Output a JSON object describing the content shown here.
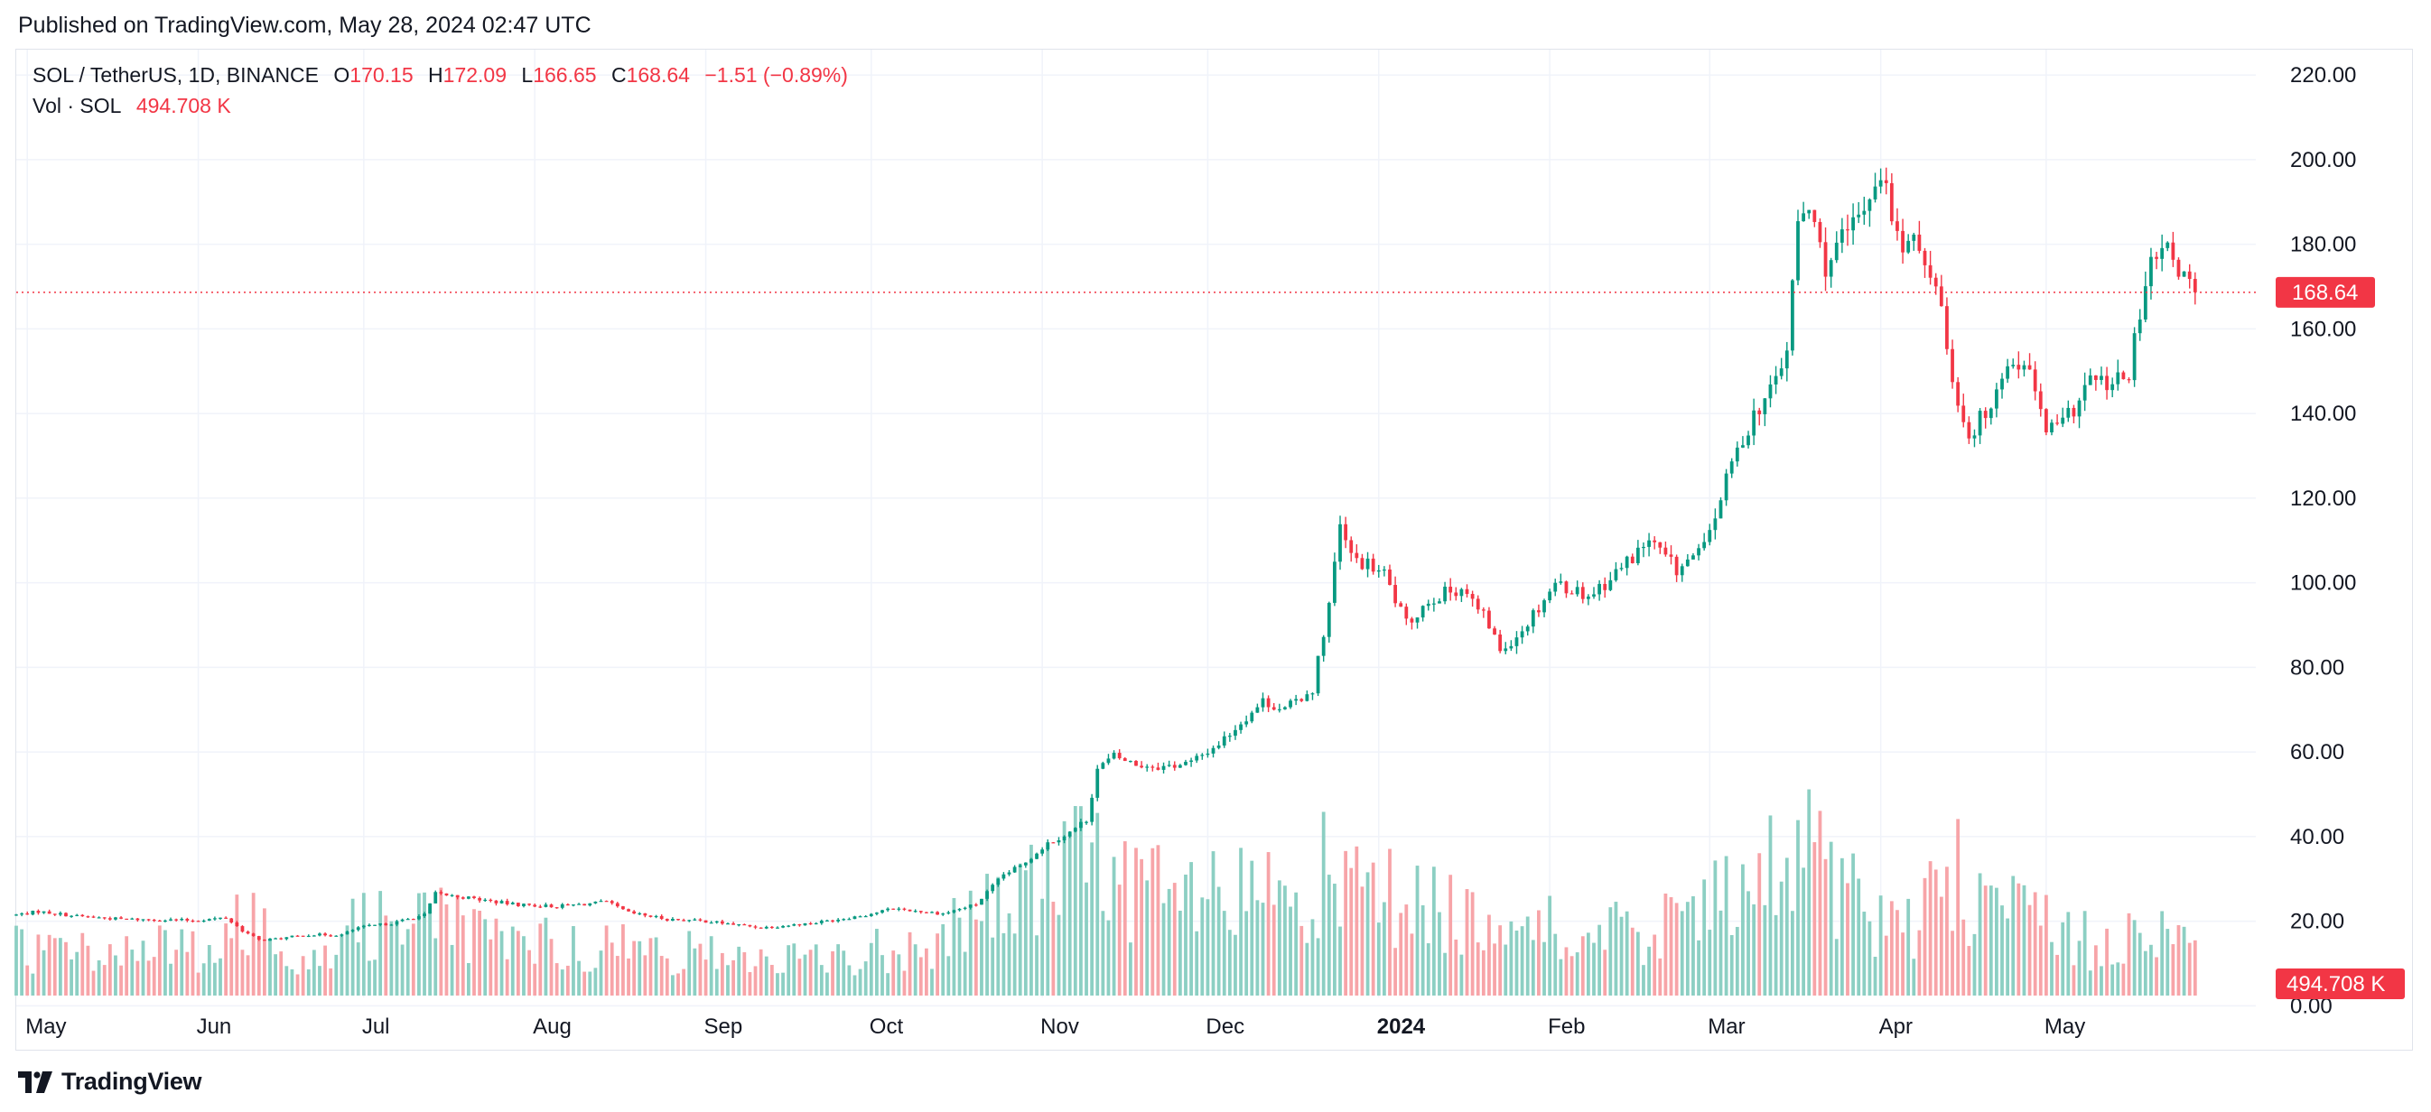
{
  "header": {
    "published": "Published on TradingView.com, May 28, 2024 02:47 UTC"
  },
  "legend": {
    "symbol": "SOL / TetherUS, 1D, BINANCE",
    "open_key": "O",
    "open": "170.15",
    "high_key": "H",
    "high": "172.09",
    "low_key": "L",
    "low": "166.65",
    "close_key": "C",
    "close": "168.64",
    "change": "−1.51 (−0.89%)",
    "vol_label": "Vol · SOL",
    "vol_value": "494.708 K"
  },
  "footer": {
    "brand": "TradingView"
  },
  "colors": {
    "up": "#089981",
    "down": "#f23645",
    "up_volume": "#8ccfc3",
    "down_volume": "#f7a4a8",
    "grid": "#f0f3fa",
    "text": "#131722"
  },
  "chart_data": {
    "type": "candlestick",
    "title": "SOL / TetherUS, 1D, BINANCE",
    "y_axis": {
      "position": "right",
      "ticks": [
        "220.00",
        "200.00",
        "180.00",
        "160.00",
        "140.00",
        "120.00",
        "100.00",
        "80.00",
        "60.00",
        "40.00",
        "20.00",
        "0.00"
      ],
      "ylim": [
        2,
        226
      ]
    },
    "x_axis": {
      "ticks": [
        {
          "label": "May",
          "date": "2023-05-01",
          "bold": false
        },
        {
          "label": "Jun",
          "date": "2023-06-01",
          "bold": false
        },
        {
          "label": "Jul",
          "date": "2023-07-01",
          "bold": false
        },
        {
          "label": "Aug",
          "date": "2023-08-01",
          "bold": false
        },
        {
          "label": "Sep",
          "date": "2023-09-01",
          "bold": false
        },
        {
          "label": "Oct",
          "date": "2023-10-01",
          "bold": false
        },
        {
          "label": "Nov",
          "date": "2023-11-01",
          "bold": false
        },
        {
          "label": "Dec",
          "date": "2023-12-01",
          "bold": false
        },
        {
          "label": "2024",
          "date": "2024-01-01",
          "bold": true
        },
        {
          "label": "Feb",
          "date": "2024-02-01",
          "bold": false
        },
        {
          "label": "Mar",
          "date": "2024-03-01",
          "bold": false
        },
        {
          "label": "Apr",
          "date": "2024-04-01",
          "bold": false
        },
        {
          "label": "May",
          "date": "2024-05-01",
          "bold": false
        }
      ],
      "range": [
        "2023-04-29",
        "2024-06-08"
      ]
    },
    "last_price": {
      "value": 168.64,
      "label": "168.64"
    },
    "last_volume": {
      "label": "494.708 K"
    },
    "grid": true,
    "volume_overlay": true,
    "price_path": [
      [
        "2023-04-29",
        21.5
      ],
      [
        "2023-05-03",
        22.3
      ],
      [
        "2023-05-10",
        21.2
      ],
      [
        "2023-05-18",
        20.5
      ],
      [
        "2023-05-31",
        20.2
      ],
      [
        "2023-06-06",
        20.8
      ],
      [
        "2023-06-09",
        17.8
      ],
      [
        "2023-06-12",
        15.5
      ],
      [
        "2023-06-15",
        15.8
      ],
      [
        "2023-06-21",
        16.8
      ],
      [
        "2023-06-27",
        16.8
      ],
      [
        "2023-06-30",
        18.5
      ],
      [
        "2023-07-06",
        19.5
      ],
      [
        "2023-07-12",
        21.5
      ],
      [
        "2023-07-14",
        26.5
      ],
      [
        "2023-07-20",
        25.5
      ],
      [
        "2023-07-28",
        24.0
      ],
      [
        "2023-08-05",
        23.5
      ],
      [
        "2023-08-14",
        24.5
      ],
      [
        "2023-08-18",
        22.0
      ],
      [
        "2023-08-25",
        20.5
      ],
      [
        "2023-09-01",
        20.0
      ],
      [
        "2023-09-11",
        18.5
      ],
      [
        "2023-09-20",
        19.5
      ],
      [
        "2023-09-30",
        21.5
      ],
      [
        "2023-10-05",
        23.0
      ],
      [
        "2023-10-14",
        21.8
      ],
      [
        "2023-10-20",
        24.0
      ],
      [
        "2023-10-25",
        31.0
      ],
      [
        "2023-10-28",
        33.0
      ],
      [
        "2023-11-02",
        38.5
      ],
      [
        "2023-11-06",
        41.0
      ],
      [
        "2023-11-09",
        44.0
      ],
      [
        "2023-11-11",
        56.0
      ],
      [
        "2023-11-14",
        59.0
      ],
      [
        "2023-11-18",
        57.0
      ],
      [
        "2023-11-23",
        56.5
      ],
      [
        "2023-11-28",
        57.5
      ],
      [
        "2023-12-03",
        62.0
      ],
      [
        "2023-12-07",
        67.0
      ],
      [
        "2023-12-11",
        72.0
      ],
      [
        "2023-12-15",
        70.0
      ],
      [
        "2023-12-20",
        75.0
      ],
      [
        "2023-12-23",
        95.0
      ],
      [
        "2023-12-25",
        113.0
      ],
      [
        "2023-12-27",
        106.0
      ],
      [
        "2024-01-02",
        102.0
      ],
      [
        "2024-01-06",
        90.0
      ],
      [
        "2024-01-10",
        96.0
      ],
      [
        "2024-01-16",
        99.0
      ],
      [
        "2024-01-21",
        90.0
      ],
      [
        "2024-01-23",
        84.0
      ],
      [
        "2024-01-27",
        89.0
      ],
      [
        "2024-02-02",
        100.0
      ],
      [
        "2024-02-08",
        97.0
      ],
      [
        "2024-02-12",
        101.0
      ],
      [
        "2024-02-19",
        110.0
      ],
      [
        "2024-02-24",
        103.0
      ],
      [
        "2024-02-29",
        108.0
      ],
      [
        "2024-03-05",
        128.0
      ],
      [
        "2024-03-09",
        140.0
      ],
      [
        "2024-03-12",
        145.0
      ],
      [
        "2024-03-15",
        155.0
      ],
      [
        "2024-03-17",
        185.0
      ],
      [
        "2024-03-19",
        188.0
      ],
      [
        "2024-03-22",
        175.0
      ],
      [
        "2024-03-28",
        186.0
      ],
      [
        "2024-04-01",
        198.0
      ],
      [
        "2024-04-04",
        181.0
      ],
      [
        "2024-04-09",
        178.0
      ],
      [
        "2024-04-12",
        165.0
      ],
      [
        "2024-04-14",
        148.0
      ],
      [
        "2024-04-17",
        135.0
      ],
      [
        "2024-04-20",
        140.0
      ],
      [
        "2024-04-23",
        150.0
      ],
      [
        "2024-04-27",
        153.0
      ],
      [
        "2024-05-01",
        136.0
      ],
      [
        "2024-05-04",
        137.0
      ],
      [
        "2024-05-09",
        148.0
      ],
      [
        "2024-05-13",
        146.0
      ],
      [
        "2024-05-16",
        150.0
      ],
      [
        "2024-05-20",
        175.0
      ],
      [
        "2024-05-23",
        178.0
      ],
      [
        "2024-05-27",
        170.2
      ],
      [
        "2024-05-28",
        168.64
      ]
    ],
    "volume_path": [
      [
        "2023-04-29",
        8
      ],
      [
        "2023-06-05",
        8
      ],
      [
        "2023-06-10",
        14
      ],
      [
        "2023-06-20",
        7
      ],
      [
        "2023-07-12",
        17
      ],
      [
        "2023-07-20",
        10
      ],
      [
        "2023-08-20",
        8
      ],
      [
        "2023-09-20",
        6
      ],
      [
        "2023-10-10",
        9
      ],
      [
        "2023-10-25",
        16
      ],
      [
        "2023-11-10",
        24
      ],
      [
        "2023-11-25",
        16
      ],
      [
        "2023-12-10",
        17
      ],
      [
        "2023-12-22",
        21
      ],
      [
        "2024-01-05",
        16
      ],
      [
        "2024-01-20",
        14
      ],
      [
        "2024-02-10",
        10
      ],
      [
        "2024-02-28",
        14
      ],
      [
        "2024-03-10",
        19
      ],
      [
        "2024-03-18",
        27
      ],
      [
        "2024-03-28",
        16
      ],
      [
        "2024-04-05",
        11
      ],
      [
        "2024-04-14",
        21
      ],
      [
        "2024-04-25",
        14
      ],
      [
        "2024-05-10",
        9
      ],
      [
        "2024-05-22",
        11
      ],
      [
        "2024-05-28",
        7
      ]
    ]
  }
}
